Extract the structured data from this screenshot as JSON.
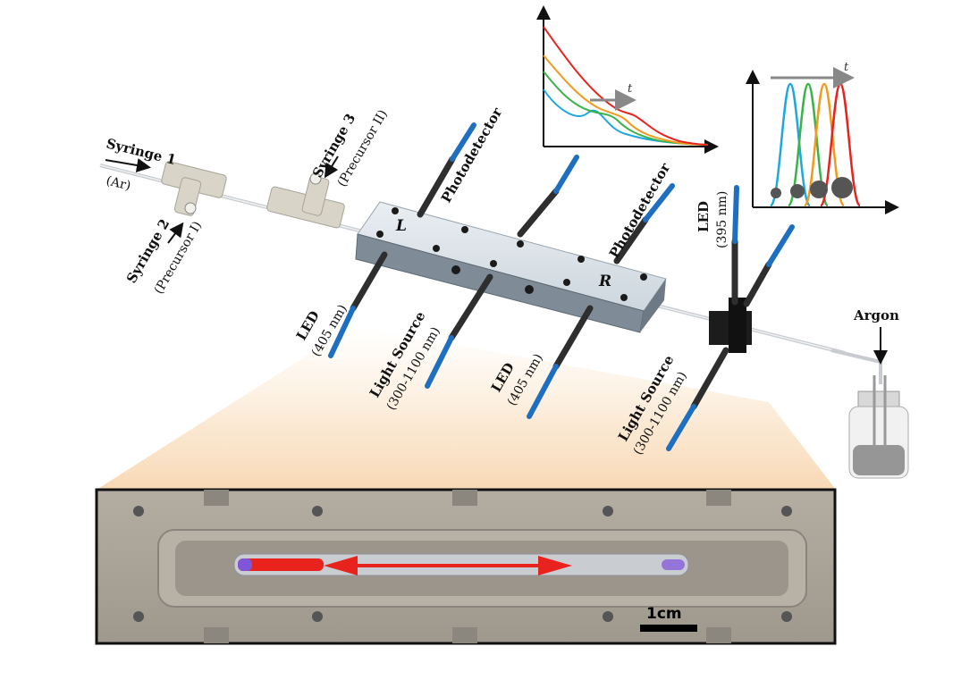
{
  "labels": {
    "syringe1_title": "Syringe 1",
    "syringe1_sub": "(Ar)",
    "syringe2_title": "Syringe 2",
    "syringe2_sub": "(Precursor I)",
    "syringe3_title": "Syringe 3",
    "syringe3_sub": "(Precursor II)",
    "photodetector_1": "Photodetector",
    "photodetector_2": "Photodetector",
    "led_left_title": "LED",
    "led_left_sub": "(405 nm)",
    "light_source_1_title": "Light Source",
    "light_source_1_sub": "(300-1100 nm)",
    "led_mid_title": "LED",
    "led_mid_sub": "(405 nm)",
    "led_right_title": "LED",
    "led_right_sub": "(395 nm)",
    "light_source_2_title": "Light Source",
    "light_source_2_sub": "(300-1100 nm)",
    "argon": "Argon",
    "block_left": "L",
    "block_right": "R",
    "scale_bar": "1cm",
    "inset1_axis": "t",
    "inset2_axis": "t"
  },
  "colors": {
    "fiber_blue": "#1f6fc0",
    "cable_dark": "#2e2e2e",
    "block_light": "#dfe6ec",
    "trace_blue": "#1ea7e0",
    "trace_green": "#3cb34a",
    "trace_orange": "#f39a1e",
    "trace_red": "#e8231e",
    "arrow_red": "#e8231e",
    "photo_bg": "#a9a49a"
  }
}
